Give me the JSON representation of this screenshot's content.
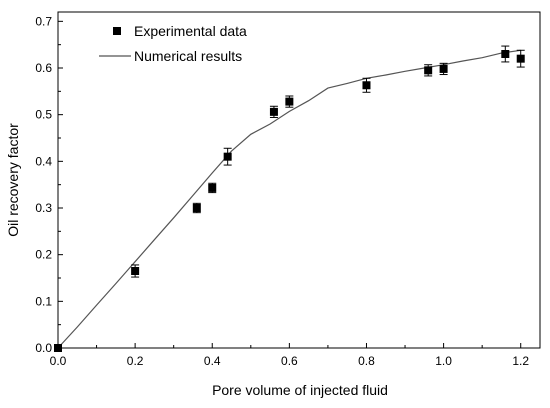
{
  "chart_data": {
    "type": "scatter",
    "title": "",
    "xlabel": "Pore volume of injected fluid",
    "ylabel": "Oil recovery factor",
    "xlim": [
      0.0,
      1.25
    ],
    "ylim": [
      0.0,
      0.72
    ],
    "x_ticks": [
      0.0,
      0.2,
      0.4,
      0.6,
      0.8,
      1.0,
      1.2
    ],
    "x_tick_labels": [
      "0.0",
      "0.2",
      "0.4",
      "0.6",
      "0.8",
      "1.0",
      "1.2"
    ],
    "y_ticks": [
      0.0,
      0.1,
      0.2,
      0.3,
      0.4,
      0.5,
      0.6,
      0.7
    ],
    "y_tick_labels": [
      "0.0",
      "0.1",
      "0.2",
      "0.3",
      "0.4",
      "0.5",
      "0.6",
      "0.7"
    ],
    "grid": false,
    "legend_position": "top-left",
    "series": [
      {
        "name": "Experimental data",
        "kind": "scatter-errorbar",
        "marker": "filled-square",
        "color": "#000000",
        "x": [
          0.0,
          0.2,
          0.36,
          0.4,
          0.44,
          0.56,
          0.6,
          0.8,
          0.96,
          1.0,
          1.16,
          1.2
        ],
        "y": [
          0.0,
          0.165,
          0.3,
          0.343,
          0.41,
          0.506,
          0.528,
          0.563,
          0.595,
          0.598,
          0.63,
          0.62
        ],
        "error": [
          0.0,
          0.013,
          0.01,
          0.01,
          0.018,
          0.012,
          0.012,
          0.015,
          0.012,
          0.012,
          0.017,
          0.018
        ]
      },
      {
        "name": "Numerical results",
        "kind": "line",
        "color": "#555555",
        "x": [
          0.0,
          0.05,
          0.1,
          0.15,
          0.2,
          0.25,
          0.3,
          0.35,
          0.4,
          0.45,
          0.5,
          0.55,
          0.6,
          0.65,
          0.7,
          0.75,
          0.8,
          0.85,
          0.9,
          0.95,
          1.0,
          1.05,
          1.1,
          1.15,
          1.2
        ],
        "y": [
          0.0,
          0.045,
          0.092,
          0.138,
          0.185,
          0.232,
          0.279,
          0.327,
          0.375,
          0.422,
          0.458,
          0.48,
          0.507,
          0.53,
          0.557,
          0.567,
          0.578,
          0.585,
          0.593,
          0.6,
          0.607,
          0.615,
          0.622,
          0.632,
          0.638
        ]
      }
    ]
  }
}
